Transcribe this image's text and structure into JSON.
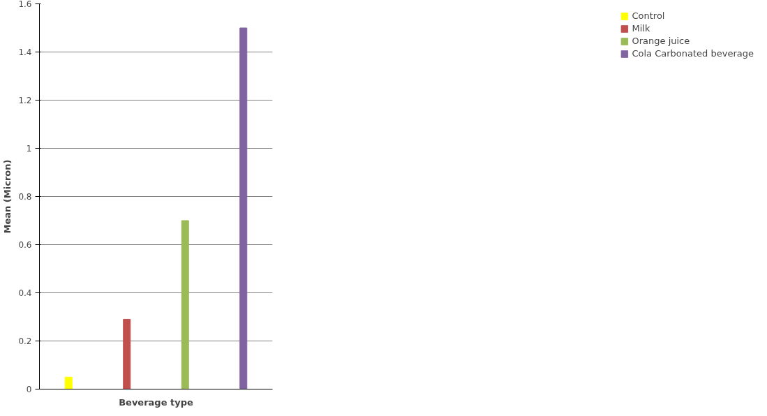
{
  "chart_data": {
    "type": "bar",
    "xlabel": "Beverage type",
    "ylabel": "Mean (Micron)",
    "categories": [
      null,
      null,
      null,
      null
    ],
    "series": [
      {
        "name": "Control",
        "color": "#ffff00",
        "values": [
          0.05,
          null,
          null,
          null
        ]
      },
      {
        "name": "Milk",
        "color": "#c0504d",
        "values": [
          null,
          0.29,
          null,
          null
        ]
      },
      {
        "name": "Orange juice",
        "color": "#9bbb59",
        "values": [
          null,
          null,
          0.7,
          null
        ]
      },
      {
        "name": "Cola Carbonated beverage",
        "color": "#8064a2",
        "values": [
          null,
          null,
          null,
          1.5
        ]
      }
    ],
    "ylim": [
      0,
      1.6
    ],
    "yticks": [
      0,
      0.2,
      0.4,
      0.6,
      0.8,
      1,
      1.2,
      1.4,
      1.6
    ],
    "grid": "y",
    "legend": "right"
  }
}
